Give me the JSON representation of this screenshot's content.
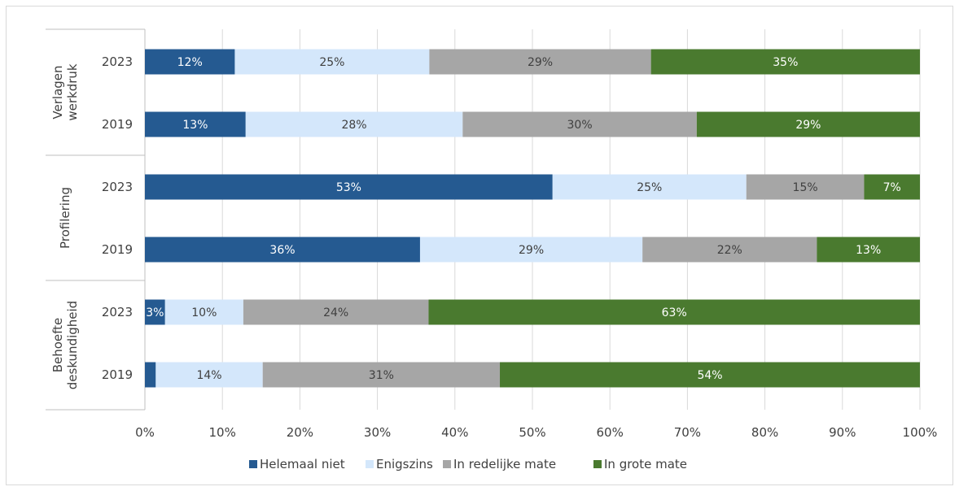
{
  "chart_data": {
    "type": "bar",
    "orientation": "horizontal",
    "stacked": true,
    "groups": [
      {
        "label": [
          "Verlagen",
          "werkdruk"
        ],
        "rows": [
          {
            "year": "2023",
            "values": [
              11.6,
              25.1,
              28.6,
              34.7
            ],
            "labels": [
              "12%",
              "25%",
              "29%",
              "35%"
            ]
          },
          {
            "year": "2019",
            "values": [
              13.0,
              28.0,
              30.2,
              28.8
            ],
            "labels": [
              "13%",
              "28%",
              "30%",
              "29%"
            ]
          }
        ]
      },
      {
        "label": [
          "Profilering"
        ],
        "rows": [
          {
            "year": "2023",
            "values": [
              52.6,
              25.0,
              15.2,
              7.2
            ],
            "labels": [
              "53%",
              "25%",
              "15%",
              "7%"
            ]
          },
          {
            "year": "2019",
            "values": [
              35.5,
              28.7,
              22.5,
              13.3
            ],
            "labels": [
              "36%",
              "29%",
              "22%",
              "13%"
            ]
          }
        ]
      },
      {
        "label": [
          "Behoefte",
          "deskundigheid"
        ],
        "rows": [
          {
            "year": "2023",
            "values": [
              2.6,
              10.1,
              23.9,
              63.4
            ],
            "labels": [
              "3%",
              "10%",
              "24%",
              "63%"
            ]
          },
          {
            "year": "2019",
            "values": [
              1.4,
              13.8,
              30.6,
              54.2
            ],
            "labels": [
              "",
              "14%",
              "31%",
              "54%"
            ]
          }
        ]
      }
    ],
    "series": [
      {
        "name": "Helemaal niet",
        "color": "#255a91",
        "text_color": "#ffffff"
      },
      {
        "name": "Enigszins",
        "color": "#d4e7fb",
        "text_color": "#404040"
      },
      {
        "name": "In redelijke mate",
        "color": "#a6a6a6",
        "text_color": "#404040"
      },
      {
        "name": "In grote mate",
        "color": "#4a7a2f",
        "text_color": "#ffffff"
      }
    ],
    "xlim": [
      0,
      100
    ],
    "xticks": [
      "0%",
      "10%",
      "20%",
      "30%",
      "40%",
      "50%",
      "60%",
      "70%",
      "80%",
      "90%",
      "100%"
    ],
    "grid": true,
    "legend_position": "bottom"
  }
}
